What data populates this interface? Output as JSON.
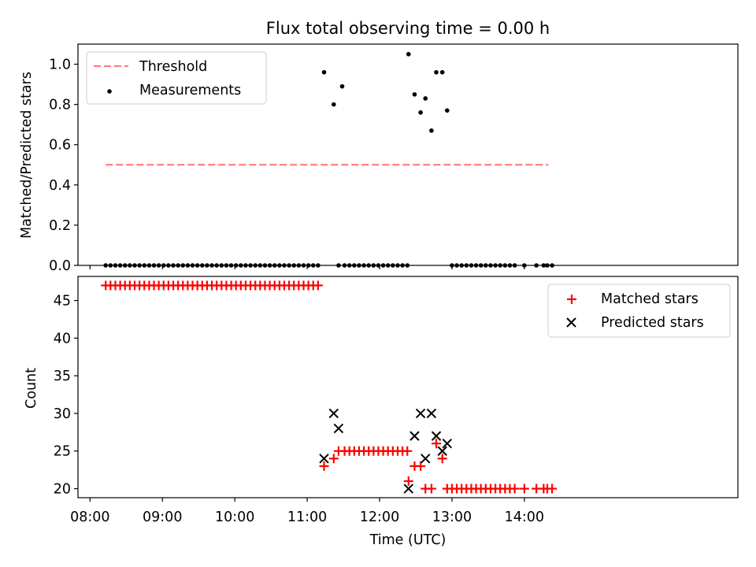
{
  "chart_data": [
    {
      "type": "scatter",
      "title": "Flux total observing time = 0.00 h",
      "xlabel": "",
      "ylabel": "Matched/Predicted stars",
      "ylim": [
        0.0,
        1.1
      ],
      "xlim_minutes": [
        470,
        1017
      ],
      "yticks": [
        0.0,
        0.2,
        0.4,
        0.6,
        0.8,
        1.0
      ],
      "ytick_labels": [
        "0.0",
        "0.2",
        "0.4",
        "0.6",
        "0.8",
        "1.0"
      ],
      "legend_position": "top-left",
      "legend": [
        {
          "label": "Threshold",
          "color": "#ff7f7f",
          "style": "dashed-line"
        },
        {
          "label": "Measurements",
          "color": "#000000",
          "style": "dot"
        }
      ],
      "series": [
        {
          "name": "Threshold",
          "type": "line",
          "color": "#ff7f7f",
          "dashed": true,
          "x": [
            "08:13",
            "14:20"
          ],
          "y": [
            0.5,
            0.5
          ]
        },
        {
          "name": "Measurements",
          "type": "scatter",
          "color": "#000000",
          "marker": "dot",
          "x": [
            "08:13",
            "08:17",
            "08:21",
            "08:25",
            "08:29",
            "08:33",
            "08:37",
            "08:41",
            "08:45",
            "08:49",
            "08:53",
            "08:57",
            "09:01",
            "09:05",
            "09:09",
            "09:13",
            "09:17",
            "09:21",
            "09:25",
            "09:29",
            "09:33",
            "09:37",
            "09:41",
            "09:45",
            "09:49",
            "09:53",
            "09:57",
            "10:01",
            "10:05",
            "10:09",
            "10:13",
            "10:17",
            "10:21",
            "10:25",
            "10:29",
            "10:33",
            "10:37",
            "10:41",
            "10:45",
            "10:49",
            "10:53",
            "10:57",
            "11:01",
            "11:05",
            "11:09",
            "11:14",
            "11:22",
            "11:29",
            "11:26",
            "11:31",
            "11:35",
            "11:39",
            "11:43",
            "11:47",
            "11:51",
            "11:55",
            "11:59",
            "12:03",
            "12:07",
            "12:11",
            "12:15",
            "12:19",
            "12:23",
            "12:24",
            "12:29",
            "12:34",
            "12:38",
            "12:43",
            "12:47",
            "12:52",
            "12:56",
            "13:00",
            "13:04",
            "13:08",
            "13:12",
            "13:16",
            "13:20",
            "13:24",
            "13:28",
            "13:32",
            "13:36",
            "13:40",
            "13:44",
            "13:48",
            "13:52",
            "14:00",
            "14:10",
            "14:16",
            "14:19",
            "14:23"
          ],
          "y": [
            0,
            0,
            0,
            0,
            0,
            0,
            0,
            0,
            0,
            0,
            0,
            0,
            0,
            0,
            0,
            0,
            0,
            0,
            0,
            0,
            0,
            0,
            0,
            0,
            0,
            0,
            0,
            0,
            0,
            0,
            0,
            0,
            0,
            0,
            0,
            0,
            0,
            0,
            0,
            0,
            0,
            0,
            0,
            0,
            0,
            0.96,
            0.8,
            0.89,
            0,
            0,
            0,
            0,
            0,
            0,
            0,
            0,
            0,
            0,
            0,
            0,
            0,
            0,
            0,
            1.05,
            0.85,
            0.76,
            0.83,
            0.67,
            0.96,
            0.96,
            0.77,
            0,
            0,
            0,
            0,
            0,
            0,
            0,
            0,
            0,
            0,
            0,
            0,
            0,
            0,
            0,
            0,
            0,
            0,
            0
          ]
        }
      ]
    },
    {
      "type": "scatter",
      "title": "",
      "xlabel": "Time (UTC)",
      "ylabel": "Count",
      "ylim": [
        18.8,
        48.2
      ],
      "xlim_minutes": [
        470,
        1017
      ],
      "yticks": [
        20,
        25,
        30,
        35,
        40,
        45
      ],
      "ytick_labels": [
        "20",
        "25",
        "30",
        "35",
        "40",
        "45"
      ],
      "xticks": [
        "08:00",
        "09:00",
        "10:00",
        "11:00",
        "12:00",
        "13:00",
        "14:00"
      ],
      "xtick_minutes": [
        480,
        540,
        600,
        660,
        720,
        780,
        840
      ],
      "legend_position": "top-right",
      "legend": [
        {
          "label": "Matched stars",
          "color": "#ff0000",
          "style": "plus"
        },
        {
          "label": "Predicted stars",
          "color": "#000000",
          "style": "x"
        }
      ],
      "series": [
        {
          "name": "Matched stars",
          "color": "#ff0000",
          "marker": "plus",
          "x": [
            "08:13",
            "08:17",
            "08:21",
            "08:25",
            "08:29",
            "08:33",
            "08:37",
            "08:41",
            "08:45",
            "08:49",
            "08:53",
            "08:57",
            "09:01",
            "09:05",
            "09:09",
            "09:13",
            "09:17",
            "09:21",
            "09:25",
            "09:29",
            "09:33",
            "09:37",
            "09:41",
            "09:45",
            "09:49",
            "09:53",
            "09:57",
            "10:01",
            "10:05",
            "10:09",
            "10:13",
            "10:17",
            "10:21",
            "10:25",
            "10:29",
            "10:33",
            "10:37",
            "10:41",
            "10:45",
            "10:49",
            "10:53",
            "10:57",
            "11:01",
            "11:05",
            "11:09",
            "11:14",
            "11:22",
            "11:26",
            "11:31",
            "11:35",
            "11:39",
            "11:43",
            "11:47",
            "11:51",
            "11:55",
            "11:59",
            "12:03",
            "12:07",
            "12:11",
            "12:15",
            "12:19",
            "12:23",
            "12:24",
            "12:29",
            "12:34",
            "12:38",
            "12:43",
            "12:47",
            "12:52",
            "12:56",
            "13:00",
            "13:04",
            "13:08",
            "13:12",
            "13:16",
            "13:20",
            "13:24",
            "13:28",
            "13:32",
            "13:36",
            "13:40",
            "13:44",
            "13:48",
            "13:52",
            "14:00",
            "14:10",
            "14:16",
            "14:19",
            "14:23"
          ],
          "y": [
            47,
            47,
            47,
            47,
            47,
            47,
            47,
            47,
            47,
            47,
            47,
            47,
            47,
            47,
            47,
            47,
            47,
            47,
            47,
            47,
            47,
            47,
            47,
            47,
            47,
            47,
            47,
            47,
            47,
            47,
            47,
            47,
            47,
            47,
            47,
            47,
            47,
            47,
            47,
            47,
            47,
            47,
            47,
            47,
            47,
            23,
            24,
            25,
            25,
            25,
            25,
            25,
            25,
            25,
            25,
            25,
            25,
            25,
            25,
            25,
            25,
            25,
            21,
            23,
            23,
            20,
            20,
            26,
            24,
            20,
            20,
            20,
            20,
            20,
            20,
            20,
            20,
            20,
            20,
            20,
            20,
            20,
            20,
            20,
            20,
            20,
            20,
            20,
            20
          ]
        },
        {
          "name": "Predicted stars",
          "color": "#000000",
          "marker": "x",
          "x": [
            "11:14",
            "11:22",
            "11:26",
            "12:24",
            "12:29",
            "12:34",
            "12:38",
            "12:43",
            "12:47",
            "12:52",
            "12:56"
          ],
          "y": [
            24,
            30,
            28,
            20,
            27,
            30,
            24,
            30,
            27,
            25,
            26
          ]
        }
      ]
    }
  ]
}
